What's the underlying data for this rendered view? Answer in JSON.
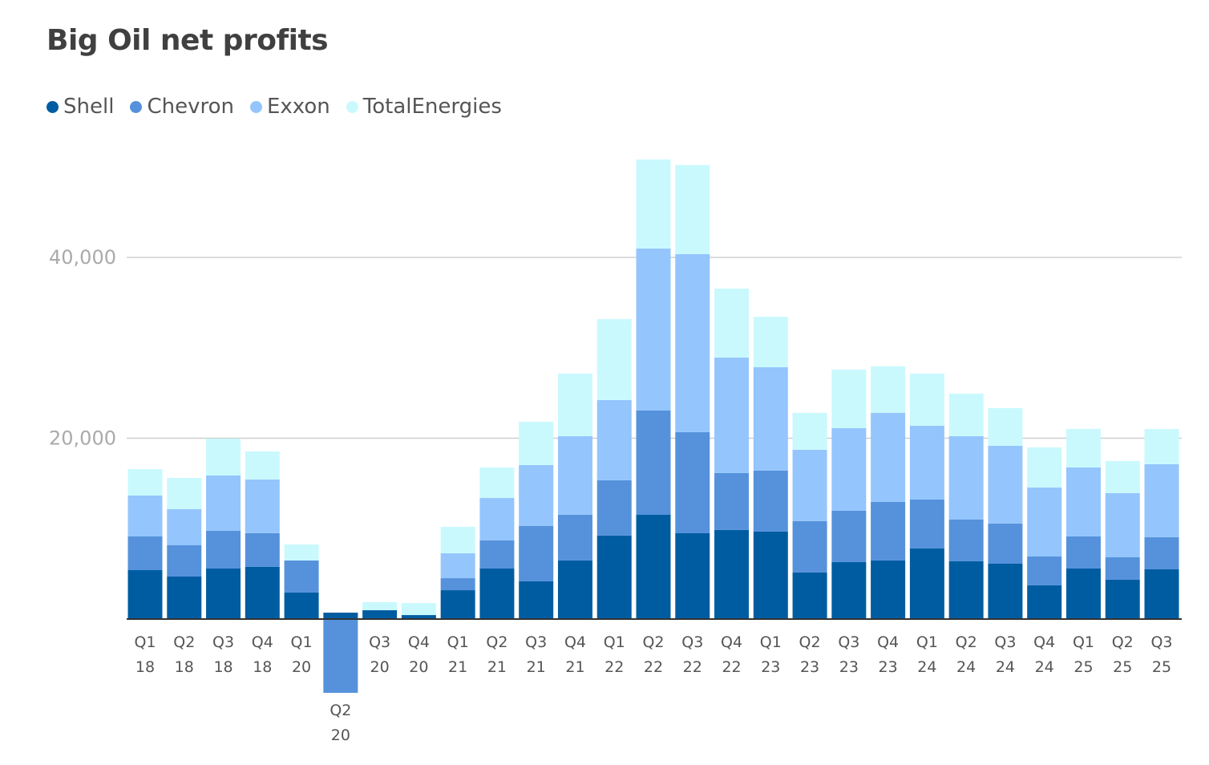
{
  "chart_data": {
    "type": "bar",
    "stacked": true,
    "title": "Big Oil net profits",
    "xlabel": "",
    "ylabel": "",
    "ylim": [
      -9000,
      51000
    ],
    "yticks": [
      20000,
      40000
    ],
    "ytick_labels": [
      "20,000",
      "40,000"
    ],
    "grid": true,
    "legend_position": "top-left",
    "categories": [
      [
        "Q1",
        "18"
      ],
      [
        "Q2",
        "18"
      ],
      [
        "Q3",
        "18"
      ],
      [
        "Q4",
        "18"
      ],
      [
        "Q1",
        "20"
      ],
      [
        "Q2",
        "20"
      ],
      [
        "Q3",
        "20"
      ],
      [
        "Q4",
        "20"
      ],
      [
        "Q1",
        "21"
      ],
      [
        "Q2",
        "21"
      ],
      [
        "Q3",
        "21"
      ],
      [
        "Q4",
        "21"
      ],
      [
        "Q1",
        "22"
      ],
      [
        "Q2",
        "22"
      ],
      [
        "Q3",
        "22"
      ],
      [
        "Q4",
        "22"
      ],
      [
        "Q1",
        "23"
      ],
      [
        "Q2",
        "23"
      ],
      [
        "Q3",
        "23"
      ],
      [
        "Q4",
        "23"
      ],
      [
        "Q1",
        "24"
      ],
      [
        "Q2",
        "24"
      ],
      [
        "Q3",
        "24"
      ],
      [
        "Q4",
        "24"
      ],
      [
        "Q1",
        "25"
      ],
      [
        "Q2",
        "25"
      ],
      [
        "Q3",
        "25"
      ]
    ],
    "series": [
      {
        "name": "Shell",
        "color": "#005ca1",
        "values": [
          5410,
          4700,
          5590,
          5770,
          2930,
          710,
          980,
          440,
          3190,
          5590,
          4170,
          6480,
          9230,
          11530,
          9490,
          9850,
          9670,
          5150,
          6300,
          6480,
          7810,
          6390,
          6120,
          3730,
          5590,
          4350,
          5500
        ]
      },
      {
        "name": "Chevron",
        "color": "#5592db",
        "values": [
          3725,
          3460,
          4170,
          3730,
          3550,
          -8160,
          0,
          0,
          1330,
          3100,
          6120,
          5060,
          6120,
          11530,
          11180,
          6300,
          6740,
          5680,
          5680,
          6480,
          5410,
          4610,
          4440,
          3190,
          3550,
          2480,
          3550
        ]
      },
      {
        "name": "Exxon",
        "color": "#94c5fd",
        "values": [
          4524,
          3990,
          6120,
          5940,
          0,
          0,
          0,
          0,
          2750,
          4700,
          6740,
          8690,
          8870,
          17920,
          19690,
          12770,
          11440,
          7890,
          9140,
          9850,
          8160,
          9230,
          8600,
          7630,
          7630,
          7100,
          8070
        ]
      },
      {
        "name": "TotalEnergies",
        "color": "#c9f9fd",
        "values": [
          2927,
          3460,
          4080,
          3100,
          1770,
          0,
          890,
          1330,
          2930,
          3370,
          4790,
          6920,
          8960,
          9850,
          9850,
          7630,
          5590,
          4080,
          6480,
          5150,
          5770,
          4700,
          4170,
          4440,
          4260,
          3550,
          3900
        ]
      }
    ]
  }
}
